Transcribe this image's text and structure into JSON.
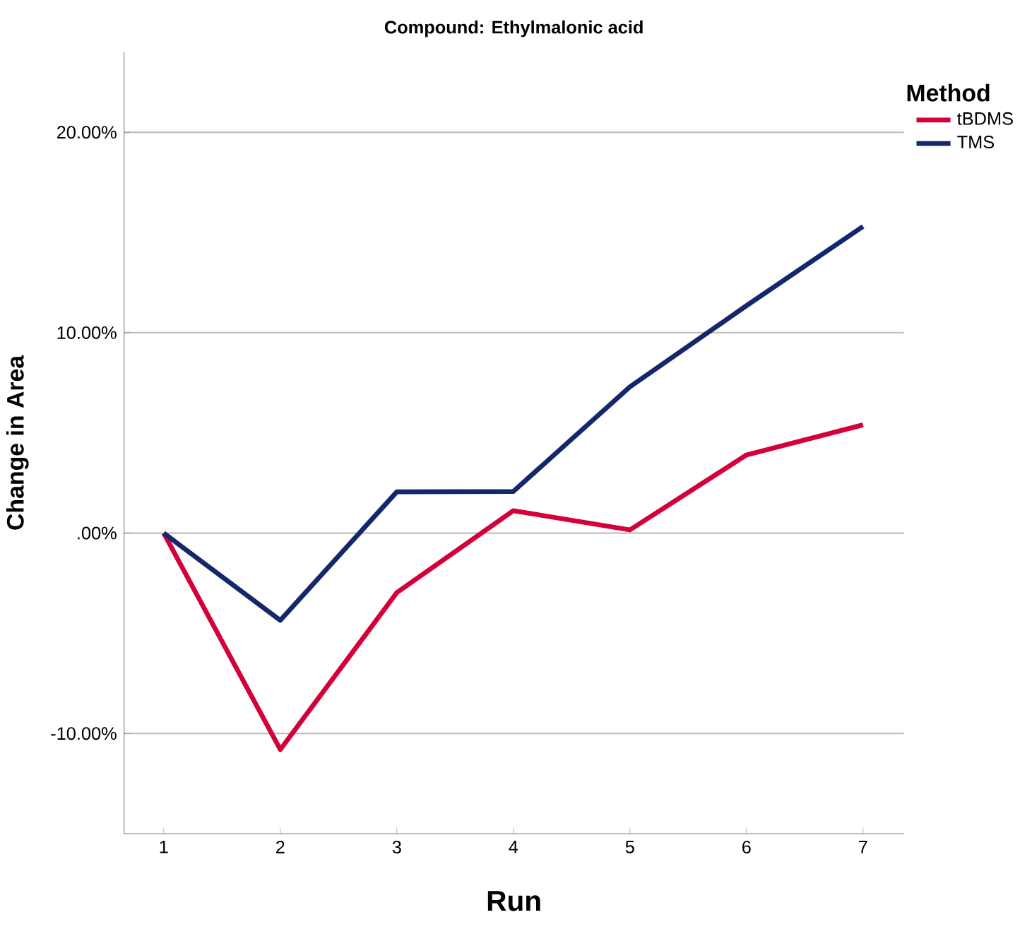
{
  "chart_data": {
    "type": "line",
    "title": "Compound: Ethylmalonic acid",
    "xlabel": "Run",
    "ylabel": "Change in Area",
    "legend_title": "Method",
    "categories": [
      "1",
      "2",
      "3",
      "4",
      "5",
      "6",
      "7"
    ],
    "series": [
      {
        "name": "tBDMS",
        "color": "#d4003a",
        "values": [
          0,
          -10.8,
          -2.97,
          1.12,
          0.16,
          3.9,
          5.4
        ]
      },
      {
        "name": "TMS",
        "color": "#13286c",
        "values": [
          0,
          -4.35,
          2.06,
          2.08,
          7.3,
          11.35,
          15.3
        ]
      }
    ],
    "ylim": [
      -15,
      24
    ],
    "yticks": [
      {
        "value": -10,
        "label": "-10.00%"
      },
      {
        "value": 0,
        "label": ".00%"
      },
      {
        "value": 10,
        "label": "10.00%"
      },
      {
        "value": 20,
        "label": "20.00%"
      }
    ],
    "grid": "y",
    "legend": "top right",
    "marker": "none",
    "line_style": "solid"
  }
}
